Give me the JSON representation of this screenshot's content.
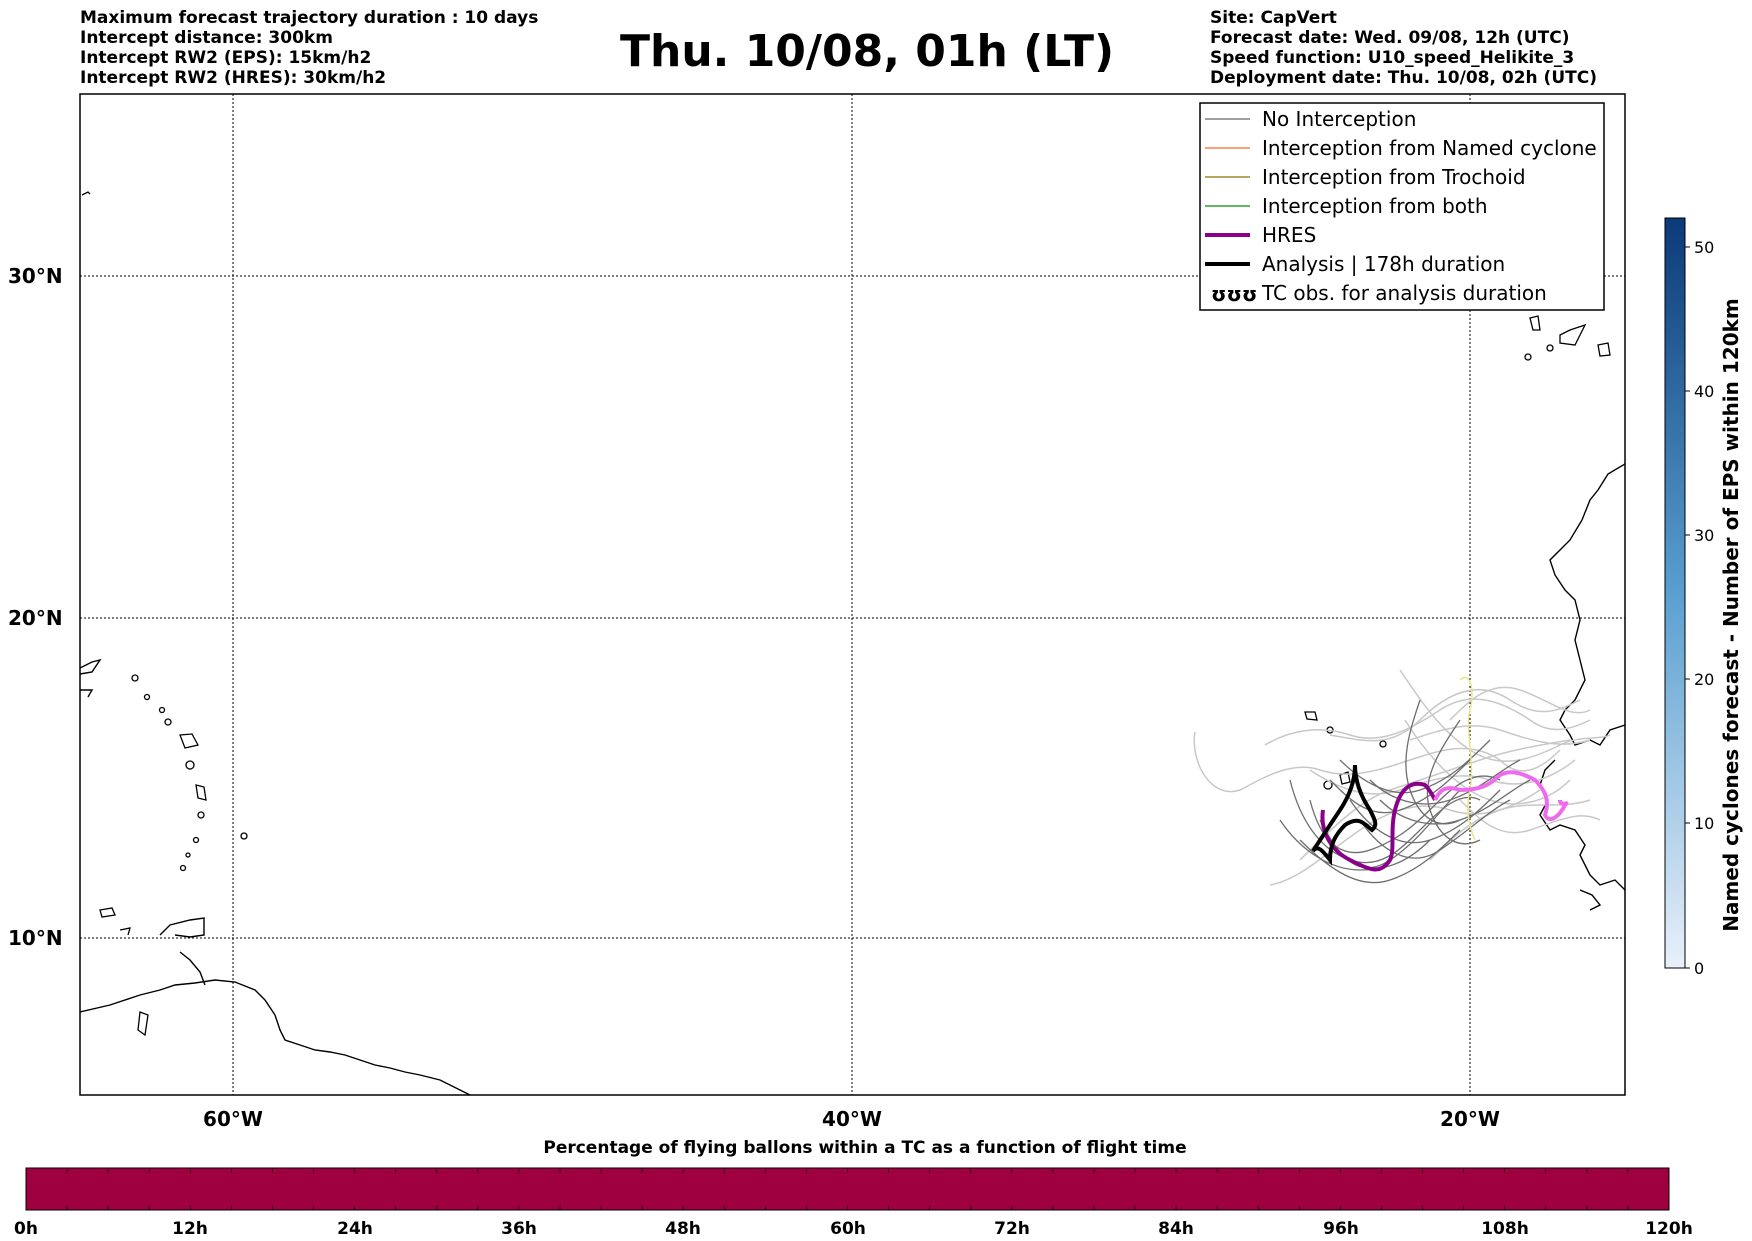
{
  "header_left": [
    "Maximum forecast trajectory duration : 10 days",
    "Intercept distance: 300km",
    "Intercept RW2 (EPS):  15km/h2",
    "Intercept RW2 (HRES): 30km/h2"
  ],
  "title": "Thu. 10/08, 01h (LT)",
  "header_right": [
    "Site: CapVert",
    "Forecast date: Wed. 09/08, 12h (UTC)",
    "Speed function: U10_speed_Helikite_3",
    "Deployment date: Thu. 10/08, 02h (UTC)"
  ],
  "map": {
    "lat_labels": [
      "30°N",
      "20°N",
      "10°N"
    ],
    "lon_labels": [
      "60°W",
      "40°W",
      "20°W"
    ]
  },
  "legend": {
    "items": [
      {
        "label": "No Interception",
        "color": "#808080",
        "style": "thin"
      },
      {
        "label": "Interception from Named cyclone",
        "color": "#ff7f50",
        "style": "thin"
      },
      {
        "label": "Interception from Trochoid",
        "color": "#9a8b2f",
        "style": "thin"
      },
      {
        "label": "Interception from both",
        "color": "#2ca02c",
        "style": "thin"
      },
      {
        "label": "HRES",
        "color": "#8b008b",
        "style": "thick"
      },
      {
        "label": "Analysis | 178h duration",
        "color": "#000000",
        "style": "thick"
      },
      {
        "label": "TC obs. for analysis duration",
        "color": "#000000",
        "style": "tc-symbol"
      }
    ]
  },
  "colorbar_right": {
    "label": "Named cyclones forecast - Number of EPS within 120km",
    "ticks": [
      "0",
      "10",
      "20",
      "30",
      "40",
      "50"
    ],
    "color_low": "#e8f0fa",
    "color_high": "#0b3a78"
  },
  "colorbar_bottom": {
    "title": "Percentage of flying ballons within a TC as a function of flight time",
    "ticks": [
      "0h",
      "12h",
      "24h",
      "36h",
      "48h",
      "60h",
      "72h",
      "84h",
      "96h",
      "108h",
      "120h"
    ],
    "fill_color": "#9e0040"
  }
}
